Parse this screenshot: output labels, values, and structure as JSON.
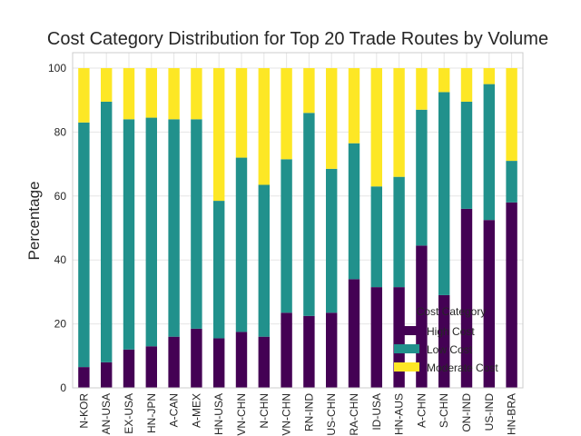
{
  "chart_data": {
    "type": "bar",
    "stacked": true,
    "title": "Cost Category Distribution for Top 20 Trade Routes by Volume",
    "xlabel": "",
    "ylabel": "Percentage",
    "ylim": [
      0,
      100
    ],
    "yticks": [
      "0",
      "20",
      "40",
      "60",
      "80",
      "100"
    ],
    "grid": true,
    "categories": [
      "N-KOR",
      "AN-USA",
      "EX-USA",
      "HN-JPN",
      "A-CAN",
      "A-MEX",
      "HN-USA",
      "VN-CHN",
      "N-CHN",
      "VN-CHN",
      "RN-IND",
      "US-CHN",
      "RA-CHN",
      "ID-USA",
      "HN-AUS",
      "A-CHN",
      "S-CHN",
      "ON-IND",
      "US-IND",
      "HN-BRA"
    ],
    "series": [
      {
        "name": "High Cost",
        "color": "#440154",
        "values": [
          6.5,
          8,
          12,
          13,
          16,
          18.5,
          15.5,
          17.5,
          16,
          23.5,
          22.5,
          23.5,
          34,
          31.5,
          31.5,
          44.5,
          29,
          56,
          52.5,
          58
        ]
      },
      {
        "name": "Low Cost",
        "color": "#21918c",
        "values": [
          76.5,
          81.5,
          72,
          71.5,
          68,
          65.5,
          43,
          54.5,
          47.5,
          48,
          63.5,
          45,
          42.5,
          31.5,
          34.5,
          42.5,
          63.5,
          33.5,
          42.5,
          13
        ]
      },
      {
        "name": "Moderate Cost",
        "color": "#fde725",
        "values": [
          17,
          10.5,
          16,
          15.5,
          16,
          16,
          41.5,
          28,
          36.5,
          28.5,
          14,
          31.5,
          23.5,
          37,
          34,
          13,
          7.5,
          10.5,
          5,
          29
        ]
      }
    ],
    "legend": {
      "title": "Cost Category",
      "position": "lower-right"
    }
  }
}
